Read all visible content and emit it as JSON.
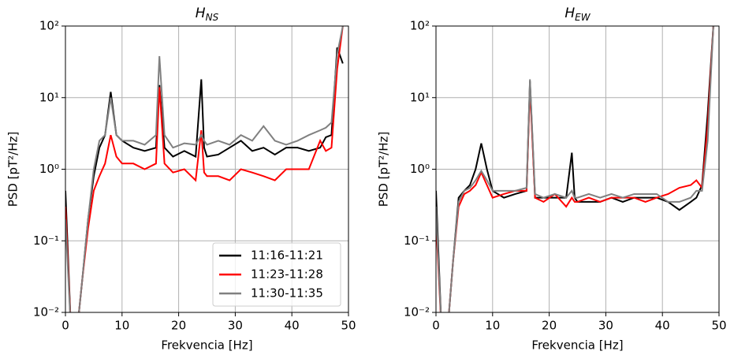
{
  "chart_data": [
    {
      "type": "line",
      "title": {
        "main": "H",
        "sub": "NS"
      },
      "xlabel": "Frekvencia [Hz]",
      "ylabel": "PSD [pT²/Hz]",
      "x": [
        0,
        1,
        2,
        3,
        4,
        5,
        6,
        7,
        8,
        9,
        10,
        12,
        14,
        16,
        16.6,
        17.5,
        19,
        21,
        23,
        24,
        24.5,
        25,
        27,
        29,
        31,
        33,
        35,
        37,
        39,
        41,
        43,
        45,
        46,
        47,
        48,
        49
      ],
      "series": [
        {
          "name": "11:16-11:21",
          "color": "#000000",
          "values": [
            0.5,
            0.005,
            0.005,
            0.03,
            0.2,
            0.8,
            2,
            3,
            12,
            3,
            2.5,
            2,
            1.8,
            2,
            15,
            2,
            1.5,
            1.8,
            1.5,
            18,
            2,
            1.5,
            1.6,
            2,
            2.5,
            1.8,
            2,
            1.6,
            2,
            2,
            1.8,
            2,
            2.8,
            3,
            50,
            30
          ]
        },
        {
          "name": "11:23-11:28",
          "color": "#ff0000",
          "values": [
            0.3,
            0.005,
            0.005,
            0.03,
            0.15,
            0.5,
            0.8,
            1.2,
            3,
            1.5,
            1.2,
            1.2,
            1,
            1.2,
            14,
            1.2,
            0.9,
            1,
            0.7,
            3.5,
            0.9,
            0.8,
            0.8,
            0.7,
            1,
            0.9,
            0.8,
            0.7,
            1,
            1,
            1,
            2.5,
            1.8,
            2,
            25,
            100
          ]
        },
        {
          "name": "11:30-11:35",
          "color": "#808080",
          "values": [
            0.2,
            0.005,
            0.005,
            0.03,
            0.2,
            1,
            2.5,
            3,
            10,
            3,
            2.5,
            2.5,
            2.2,
            3,
            38,
            3,
            2,
            2.3,
            2.2,
            3,
            2.5,
            2.2,
            2.5,
            2.2,
            3,
            2.5,
            4,
            2.5,
            2.2,
            2.5,
            3,
            3.5,
            3.8,
            4.5,
            40,
            100
          ]
        }
      ],
      "xlim": [
        0,
        50
      ],
      "xticks": [
        0,
        10,
        20,
        30,
        40,
        50
      ],
      "ylim": [
        0.01,
        100
      ],
      "log_y": true,
      "yticks": [
        {
          "value": 0.01,
          "label": "10⁻²"
        },
        {
          "value": 0.1,
          "label": "10⁻¹"
        },
        {
          "value": 1,
          "label": "10⁰"
        },
        {
          "value": 10,
          "label": "10¹"
        },
        {
          "value": 100,
          "label": "10²"
        }
      ],
      "grid": true,
      "legend": "lower right"
    },
    {
      "type": "line",
      "title": {
        "main": "H",
        "sub": "EW"
      },
      "xlabel": "Frekvencia [Hz]",
      "ylabel": "PSD [pT²/Hz]",
      "x": [
        0,
        1,
        2,
        3,
        4,
        5,
        6,
        7,
        8,
        9,
        10,
        12,
        14,
        16,
        16.6,
        17.5,
        19,
        21,
        23,
        24,
        24.5,
        25,
        27,
        29,
        31,
        33,
        35,
        37,
        39,
        41,
        43,
        45,
        46,
        47,
        48,
        49
      ],
      "series": [
        {
          "color": "#000000",
          "values": [
            0.5,
            0.005,
            0.005,
            0.05,
            0.4,
            0.5,
            0.6,
            1,
            2.3,
            1,
            0.5,
            0.4,
            0.45,
            0.5,
            17,
            0.4,
            0.4,
            0.4,
            0.4,
            1.7,
            0.4,
            0.35,
            0.35,
            0.35,
            0.4,
            0.35,
            0.4,
            0.4,
            0.4,
            0.35,
            0.27,
            0.35,
            0.4,
            0.6,
            6,
            100
          ]
        },
        {
          "color": "#ff0000",
          "values": [
            0.2,
            0.005,
            0.005,
            0.05,
            0.3,
            0.45,
            0.5,
            0.6,
            0.9,
            0.6,
            0.4,
            0.45,
            0.5,
            0.5,
            14,
            0.4,
            0.35,
            0.45,
            0.3,
            0.4,
            0.35,
            0.35,
            0.4,
            0.35,
            0.4,
            0.4,
            0.4,
            0.35,
            0.4,
            0.45,
            0.55,
            0.6,
            0.7,
            0.55,
            4,
            100
          ]
        },
        {
          "color": "#808080",
          "values": [
            0.3,
            0.005,
            0.005,
            0.05,
            0.35,
            0.5,
            0.55,
            0.7,
            0.95,
            0.7,
            0.5,
            0.5,
            0.5,
            0.55,
            18,
            0.45,
            0.4,
            0.45,
            0.4,
            0.5,
            0.4,
            0.4,
            0.45,
            0.4,
            0.45,
            0.4,
            0.45,
            0.45,
            0.45,
            0.35,
            0.35,
            0.4,
            0.5,
            0.5,
            2.5,
            100
          ]
        }
      ],
      "xlim": [
        0,
        50
      ],
      "xticks": [
        0,
        10,
        20,
        30,
        40,
        50
      ],
      "ylim": [
        0.01,
        100
      ],
      "log_y": true,
      "yticks": [
        {
          "value": 0.01,
          "label": "10⁻²"
        },
        {
          "value": 0.1,
          "label": "10⁻¹"
        },
        {
          "value": 1,
          "label": "10⁰"
        },
        {
          "value": 10,
          "label": "10¹"
        },
        {
          "value": 100,
          "label": "10²"
        }
      ],
      "grid": true
    }
  ]
}
